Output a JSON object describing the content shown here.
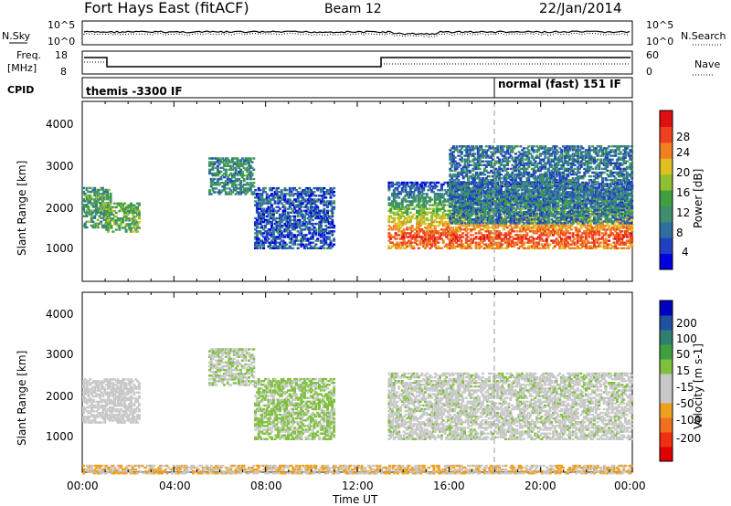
{
  "header": {
    "title": "Fort Hays East (fitACF)",
    "beam": "Beam 12",
    "date": "22/Jan/2014"
  },
  "noise_panel": {
    "left_label": "N.Sky",
    "right_label": "N.Search",
    "left_ticks": [
      "10^5",
      "10^0"
    ],
    "right_ticks": [
      "10^5",
      "10^0"
    ]
  },
  "freq_panel": {
    "left_label_1": "Freq.",
    "left_label_2": "[MHz]",
    "right_label": "Nave",
    "left_ticks": [
      "18",
      "8"
    ],
    "right_ticks": [
      "60",
      "0"
    ]
  },
  "cpid_panel": {
    "label": "CPID",
    "mode_1": "themis -3300 IF",
    "mode_2": "normal (fast) 151 IF"
  },
  "x_axis": {
    "label": "Time UT",
    "ticks": [
      "00:00",
      "04:00",
      "08:00",
      "12:00",
      "16:00",
      "20:00",
      "00:00"
    ]
  },
  "power_panel": {
    "ylabel": "Slant Range [km]",
    "yticks": [
      "4000",
      "3000",
      "2000",
      "1000"
    ],
    "colorbar_label": "Power [dB]",
    "colorbar_ticks": [
      "28",
      "24",
      "20",
      "16",
      "12",
      "8",
      "4"
    ],
    "colors": [
      "#0000e0",
      "#2040c0",
      "#2f6fa0",
      "#3f8f6f",
      "#40a040",
      "#90c030",
      "#e0c020",
      "#f08020",
      "#f04020",
      "#e01010"
    ]
  },
  "velocity_panel": {
    "ylabel": "Slant Range [km]",
    "yticks": [
      "4000",
      "3000",
      "2000",
      "1000"
    ],
    "colorbar_label": "Velocity [m s-1]",
    "colorbar_ticks": [
      "200",
      "100",
      "50",
      "15",
      "-15",
      "-50",
      "-100",
      "-200"
    ],
    "colors": [
      "#0000c0",
      "#2050a0",
      "#2f7f6f",
      "#40a040",
      "#80c040",
      "#c8c8c8",
      "#c8c8c8",
      "#f0a020",
      "#f07020",
      "#f03010",
      "#e00000"
    ]
  },
  "chart_data": [
    {
      "type": "heatmap",
      "name": "Power",
      "xlabel": "Time UT",
      "ylabel": "Slant Range [km]",
      "colorbar": "Power [dB]",
      "xlim": [
        "00:00",
        "24:00"
      ],
      "ylim": [
        180,
        4500
      ],
      "clim": [
        0,
        30
      ],
      "features": [
        {
          "time": [
            "00:00",
            "01:15"
          ],
          "range_km": [
            1500,
            2500
          ],
          "power_db": 12
        },
        {
          "time": [
            "01:00",
            "02:30"
          ],
          "range_km": [
            1400,
            2100
          ],
          "power_db": 14
        },
        {
          "time": [
            "05:30",
            "07:30"
          ],
          "range_km": [
            2300,
            3200
          ],
          "power_db": 10
        },
        {
          "time": [
            "07:30",
            "11:00"
          ],
          "range_km": [
            1000,
            2500
          ],
          "power_db": 6
        },
        {
          "time": [
            "13:20",
            "24:00"
          ],
          "range_km": [
            1000,
            2600
          ],
          "power_db": 22
        },
        {
          "time": [
            "16:00",
            "24:00"
          ],
          "range_km": [
            1600,
            3500
          ],
          "power_db": 8
        }
      ]
    },
    {
      "type": "heatmap",
      "name": "Velocity",
      "xlabel": "Time UT",
      "ylabel": "Slant Range [km]",
      "colorbar": "Velocity [m s-1]",
      "xlim": [
        "00:00",
        "24:00"
      ],
      "ylim": [
        180,
        4500
      ],
      "clim": [
        -200,
        200
      ],
      "features": [
        {
          "time": [
            "00:00",
            "02:30"
          ],
          "range_km": [
            1400,
            2500
          ],
          "velocity": -10
        },
        {
          "time": [
            "05:30",
            "07:30"
          ],
          "range_km": [
            2300,
            3200
          ],
          "velocity": 10
        },
        {
          "time": [
            "07:30",
            "11:00"
          ],
          "range_km": [
            1000,
            2500
          ],
          "velocity": 30
        },
        {
          "time": [
            "13:20",
            "24:00"
          ],
          "range_km": [
            1000,
            2600
          ],
          "velocity": 0
        },
        {
          "time": [
            "00:00",
            "24:00"
          ],
          "range_km": [
            180,
            400
          ],
          "velocity": -60
        }
      ]
    }
  ]
}
